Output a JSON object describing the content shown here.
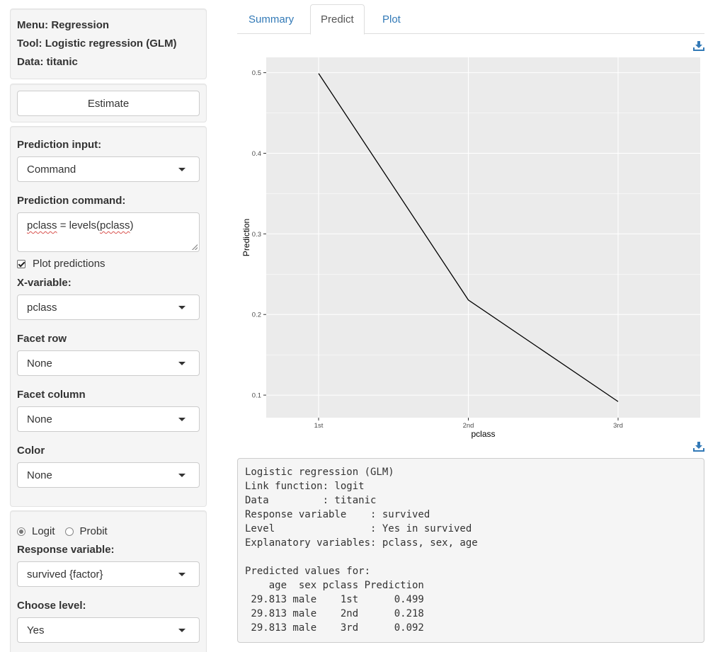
{
  "sidebar": {
    "info": {
      "menu": "Menu: Regression",
      "tool": "Tool: Logistic regression (GLM)",
      "data": "Data: titanic"
    },
    "estimate_label": "Estimate",
    "prediction_input": {
      "label": "Prediction input:",
      "value": "Command"
    },
    "prediction_command": {
      "label": "Prediction command:",
      "value_var": "pclass",
      "value_mid": " = levels(",
      "value_arg": "pclass",
      "value_end": ")"
    },
    "plot_predictions": {
      "label": "Plot predictions",
      "checked": true
    },
    "x_variable": {
      "label": "X-variable:",
      "value": "pclass"
    },
    "facet_row": {
      "label": "Facet row",
      "value": "None"
    },
    "facet_column": {
      "label": "Facet column",
      "value": "None"
    },
    "color": {
      "label": "Color",
      "value": "None"
    },
    "link": {
      "logit": "Logit",
      "probit": "Probit",
      "selected": "Logit"
    },
    "response_variable": {
      "label": "Response variable:",
      "value": "survived {factor}"
    },
    "choose_level": {
      "label": "Choose level:",
      "value": "Yes"
    }
  },
  "tabs": [
    {
      "label": "Summary",
      "active": false
    },
    {
      "label": "Predict",
      "active": true
    },
    {
      "label": "Plot",
      "active": false
    }
  ],
  "chart_data": {
    "type": "line",
    "categories": [
      "1st",
      "2nd",
      "3rd"
    ],
    "values": [
      0.499,
      0.218,
      0.092
    ],
    "xlabel": "pclass",
    "ylabel": "Prediction",
    "yticks": [
      0.1,
      0.2,
      0.3,
      0.4,
      0.5
    ],
    "ytick_labels": [
      "0.1",
      "0.2",
      "0.3",
      "0.4",
      "0.5"
    ],
    "ylim": [
      0.072,
      0.519
    ],
    "grid": true,
    "colors": {
      "panel": "#ebebeb",
      "grid": "#ffffff",
      "line": "#000000"
    }
  },
  "output": {
    "lines": [
      "Logistic regression (GLM)",
      "Link function: logit",
      "Data         : titanic",
      "Response variable    : survived",
      "Level                : Yes in survived",
      "Explanatory variables: pclass, sex, age",
      "",
      "Predicted values for:",
      "    age  sex pclass Prediction",
      " 29.813 male    1st      0.499",
      " 29.813 male    2nd      0.218",
      " 29.813 male    3rd      0.092"
    ]
  },
  "colors": {
    "link": "#337ab7",
    "panel": "#f5f5f5",
    "download": "#337ab7"
  }
}
